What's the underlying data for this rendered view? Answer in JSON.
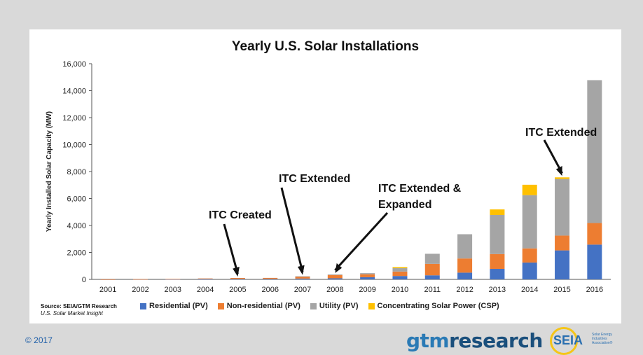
{
  "chart_data": {
    "type": "bar",
    "stacked": true,
    "title": "Yearly U.S. Solar Installations",
    "ylabel": "Yearly Installed Solar Capacity (MW)",
    "xlabel": "",
    "ylim": [
      0,
      16000
    ],
    "yticks": [
      "0",
      "2,000",
      "4,000",
      "6,000",
      "8,000",
      "10,000",
      "12,000",
      "14,000",
      "16,000"
    ],
    "categories": [
      "2001",
      "2002",
      "2003",
      "2004",
      "2005",
      "2006",
      "2007",
      "2008",
      "2009",
      "2010",
      "2011",
      "2012",
      "2013",
      "2014",
      "2015",
      "2016"
    ],
    "series": [
      {
        "name": "Residential (PV)",
        "color": "#4472c4",
        "values": [
          5,
          10,
          15,
          30,
          35,
          40,
          60,
          80,
          160,
          250,
          300,
          500,
          780,
          1250,
          2150,
          2580
        ]
      },
      {
        "name": "Non-residential (PV)",
        "color": "#ed7d31",
        "values": [
          5,
          10,
          20,
          40,
          70,
          70,
          150,
          240,
          220,
          330,
          850,
          1050,
          1100,
          1050,
          1100,
          1600
        ]
      },
      {
        "name": "Utility (PV)",
        "color": "#a5a5a5",
        "values": [
          0,
          0,
          0,
          0,
          0,
          0,
          20,
          50,
          80,
          250,
          750,
          1800,
          2900,
          3950,
          4200,
          10600
        ]
      },
      {
        "name": "Concentrating Solar Power (CSP)",
        "color": "#ffc000",
        "values": [
          0,
          0,
          0,
          0,
          0,
          0,
          0,
          0,
          0,
          80,
          0,
          0,
          410,
          770,
          120,
          0
        ]
      }
    ],
    "annotations": [
      {
        "text": "ITC Created",
        "year": "2005"
      },
      {
        "text": "ITC Extended",
        "year": "2007"
      },
      {
        "text": "ITC Extended & Expanded",
        "year": "2008"
      },
      {
        "text": "ITC Extended",
        "year": "2015"
      }
    ],
    "legend_position": "bottom"
  },
  "source": {
    "line1": "Source: SEIA/GTM Research",
    "line2": "U.S. Solar Market Insight"
  },
  "footer": {
    "copyright": "© 2017",
    "gtm_a": "gtm",
    "gtm_b": "research",
    "seia": "SEIA",
    "seia_sub": "Solar Energy Industries Association®"
  }
}
